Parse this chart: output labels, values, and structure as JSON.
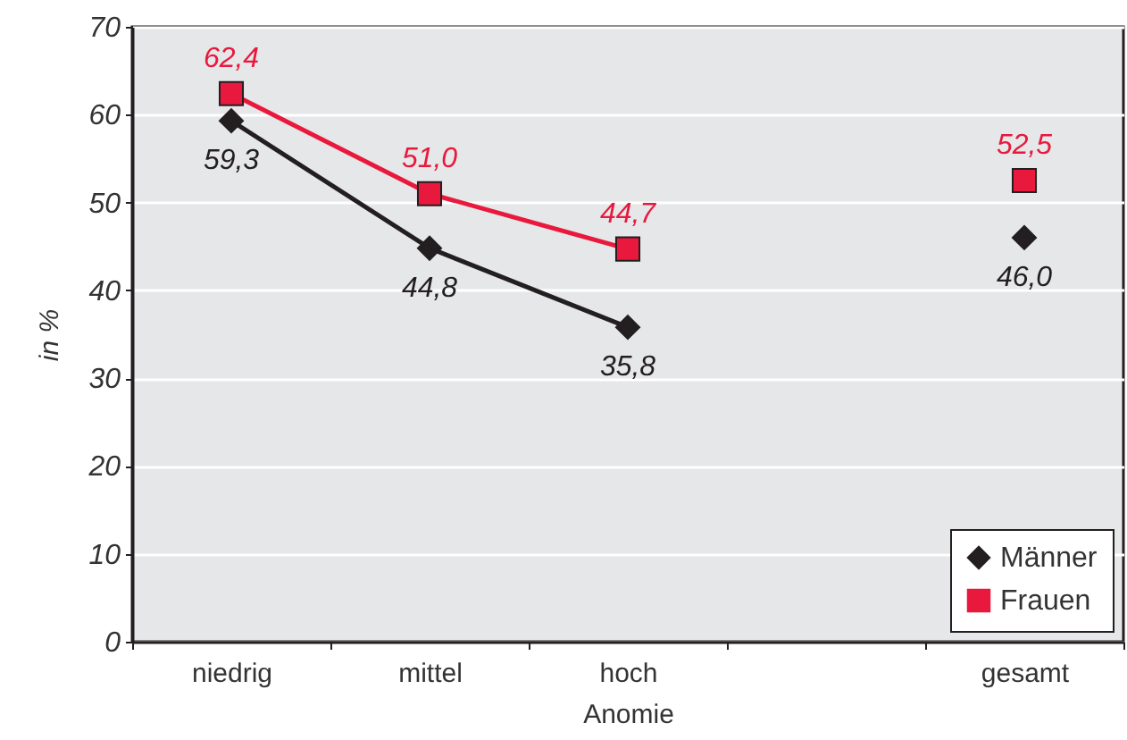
{
  "chart_data": {
    "type": "line",
    "xlabel": "Anomie",
    "ylabel": "in %",
    "categories": [
      "niedrig",
      "mittel",
      "hoch",
      null,
      "gesamt"
    ],
    "series": [
      {
        "name": "Männer",
        "color": "#231f20",
        "marker": "diamond",
        "values": [
          59.3,
          44.8,
          35.8,
          null,
          46.0
        ],
        "value_labels": [
          "59,3",
          "44,8",
          "35,8",
          null,
          "46,0"
        ]
      },
      {
        "name": "Frauen",
        "color": "#e8193c",
        "marker": "square",
        "values": [
          62.4,
          51.0,
          44.7,
          null,
          52.5
        ],
        "value_labels": [
          "62,4",
          "51,0",
          "44,7",
          null,
          "52,5"
        ]
      }
    ],
    "ylim": [
      0,
      70
    ],
    "yticks": [
      0,
      10,
      20,
      30,
      40,
      50,
      60,
      70
    ],
    "grid": "y",
    "legend": "bottom right"
  }
}
